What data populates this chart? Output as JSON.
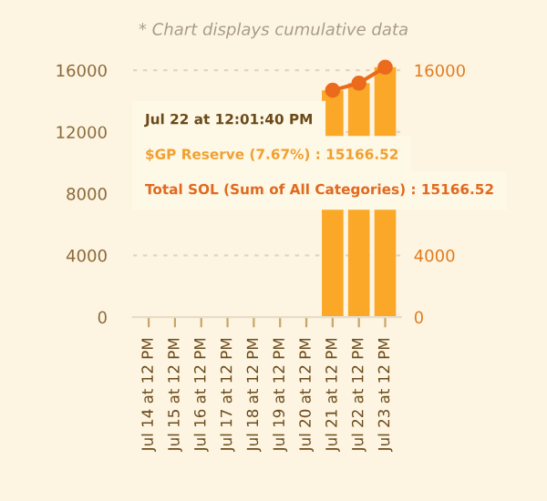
{
  "chart_data": {
    "type": "bar",
    "subtitle": "* Chart displays cumulative data",
    "categories": [
      "Jul 14 at 12 PM",
      "Jul 15 at 12 PM",
      "Jul 16 at 12 PM",
      "Jul 17 at 12 PM",
      "Jul 18 at 12 PM",
      "Jul 19 at 12 PM",
      "Jul 20 at 12 PM",
      "Jul 21 at 12 PM",
      "Jul 22 at 12 PM",
      "Jul 23 at 12 PM"
    ],
    "series": [
      {
        "color": "#fba829",
        "values": [
          null,
          null,
          null,
          null,
          null,
          null,
          null,
          14700,
          15166.52,
          16200
        ]
      },
      {
        "type": "line",
        "axis": "y2",
        "color": "#eb6a1c",
        "values": [
          null,
          null,
          null,
          null,
          null,
          null,
          null,
          14700,
          15166.52,
          16200
        ]
      }
    ],
    "marker": "circle",
    "ylim": [
      0,
      16400
    ],
    "yticks": [
      0,
      4000,
      8000,
      12000,
      16000
    ],
    "y2lim": [
      0,
      16400
    ],
    "y2ticks": [
      0,
      4000,
      16000
    ],
    "grid": "y",
    "annotations": [
      "Jul 22 at 12:01:40 PM",
      "$GP Reserve (7.67%) : 15166.52",
      "Total SOL (Sum of All Categories) : 15166.52"
    ]
  }
}
